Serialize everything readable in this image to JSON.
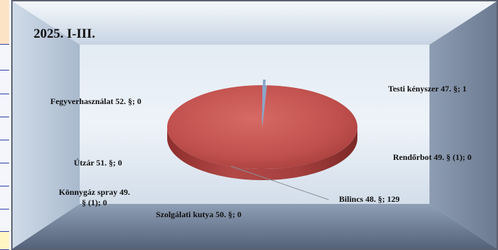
{
  "chart_data": {
    "type": "pie",
    "title": "2025. I-III.",
    "style": "3d",
    "slices": [
      {
        "label": "Testi kényszer 47. §; 1",
        "value": 1,
        "color": "#8aa6c8"
      },
      {
        "label": "Rendőrbot 49. § (1); 0",
        "value": 0,
        "color": "#7f9ec0"
      },
      {
        "label": "Bilincs 48. §; 129",
        "value": 129,
        "color": "#c0504d"
      },
      {
        "label": "Szolgálati kutya 50. §; 0",
        "value": 0,
        "color": "#9bb4d2"
      },
      {
        "label": "Könnygáz spray 49. § (1); 0",
        "value": 0,
        "color": "#9bb4d2"
      },
      {
        "label": "Útzár 51. §; 0",
        "value": 0,
        "color": "#9bb4d2"
      },
      {
        "label": "Fegyverhasználat 52. §; 0",
        "value": 0,
        "color": "#9bb4d2"
      }
    ]
  }
}
